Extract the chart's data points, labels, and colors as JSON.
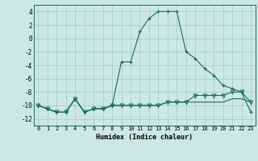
{
  "xlabel": "Humidex (Indice chaleur)",
  "x": [
    0,
    1,
    2,
    3,
    4,
    5,
    6,
    7,
    8,
    9,
    10,
    11,
    12,
    13,
    14,
    15,
    16,
    17,
    18,
    19,
    20,
    21,
    22,
    23
  ],
  "line1": [
    -10,
    -10.5,
    -11,
    -11,
    -9,
    -11,
    -10.5,
    -10.5,
    -10,
    -10,
    -10,
    -10,
    -10,
    -10,
    -9.5,
    -9.5,
    -9.5,
    -9.5,
    -9.5,
    -9.5,
    -9.5,
    -9,
    -9,
    -9.5
  ],
  "line2": [
    -10,
    -10.5,
    -11,
    -11,
    -9,
    -11,
    -10.5,
    -10.5,
    -10,
    -3.5,
    -3.5,
    1,
    3,
    4,
    4,
    4,
    -2,
    -3,
    -4.5,
    -5.5,
    -7,
    -7.5,
    -8,
    -11
  ],
  "line3": [
    -10,
    -10.5,
    -11,
    -11,
    -9,
    -11,
    -10.5,
    -10.5,
    -10,
    -10,
    -10,
    -10,
    -10,
    -10,
    -9.5,
    -9.5,
    -9.5,
    -8.5,
    -8.5,
    -8.5,
    -8.5,
    -8,
    -8,
    -9.5
  ],
  "bg_color": "#cce8e4",
  "grid_color": "#9ecbc6",
  "line_color": "#1a6b5a",
  "ylim": [
    -13,
    5
  ],
  "yticks": [
    -12,
    -10,
    -8,
    -6,
    -4,
    -2,
    0,
    2,
    4
  ],
  "xlim": [
    -0.5,
    23.5
  ]
}
